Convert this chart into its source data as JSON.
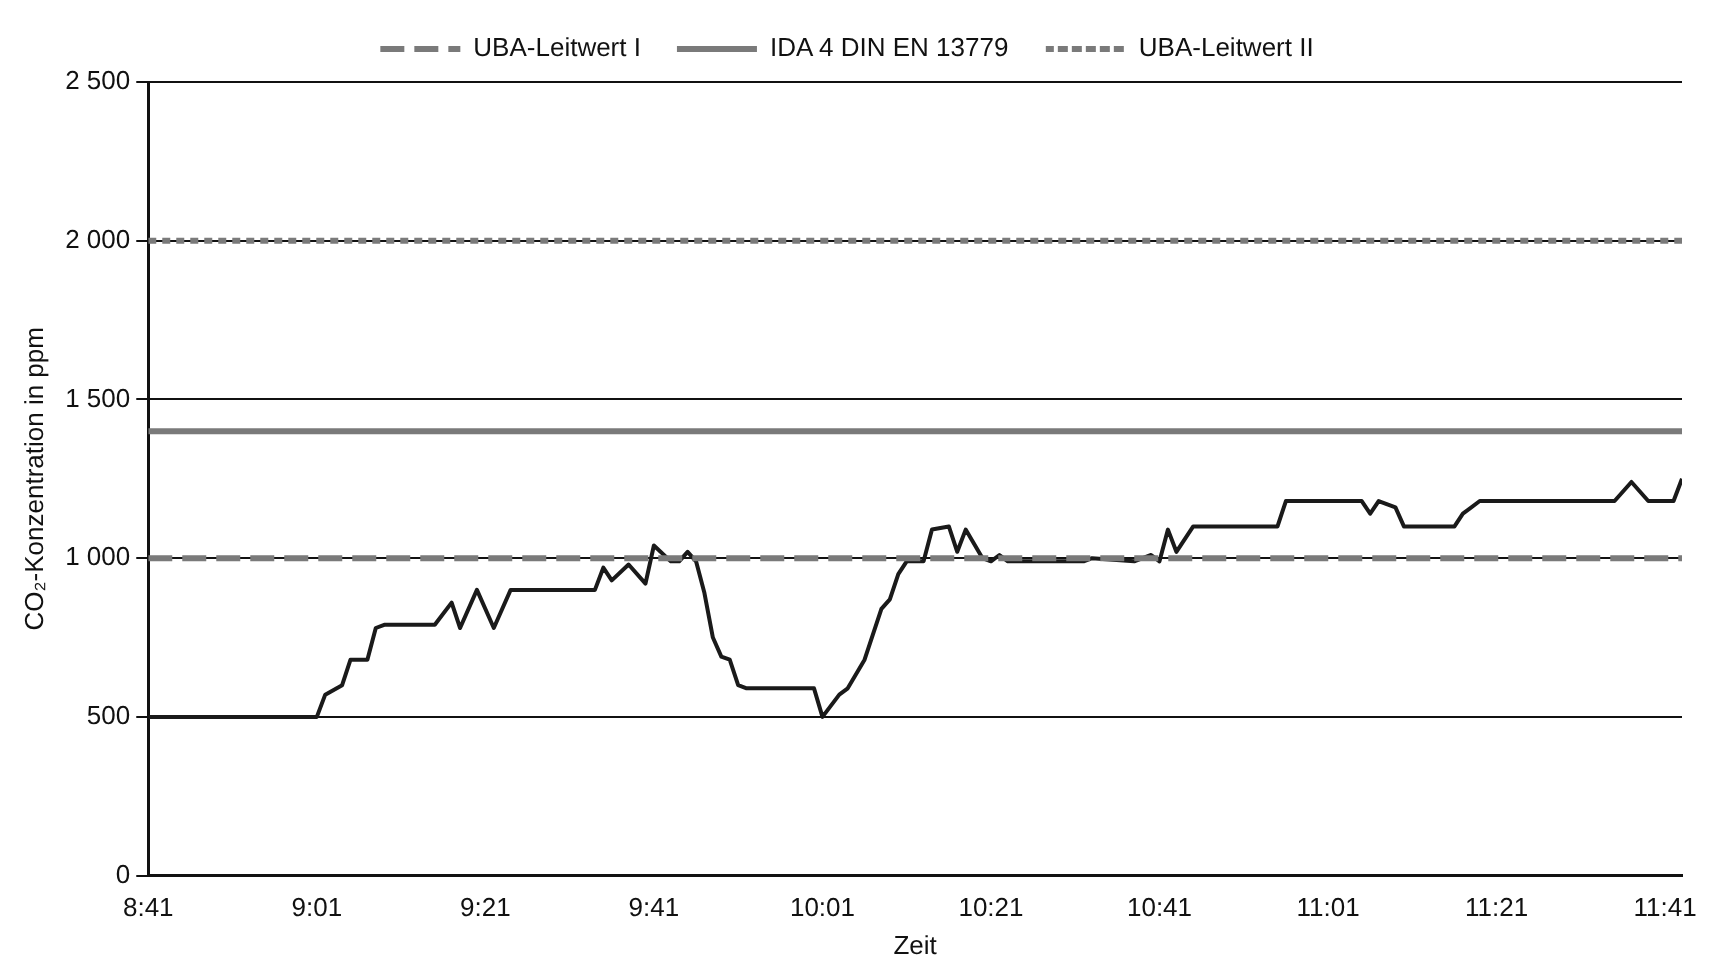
{
  "chart_data": {
    "type": "line",
    "xlabel": "Zeit",
    "ylabel": "CO₂-Konzentration in ppm",
    "xlim": [
      8.6833,
      11.7167
    ],
    "xticks": [
      {
        "value": 8.6833,
        "label": "8:41"
      },
      {
        "value": 9.0167,
        "label": "9:01"
      },
      {
        "value": 9.35,
        "label": "9:21"
      },
      {
        "value": 9.6833,
        "label": "9:41"
      },
      {
        "value": 10.0167,
        "label": "10:01"
      },
      {
        "value": 10.35,
        "label": "10:21"
      },
      {
        "value": 10.6833,
        "label": "10:41"
      },
      {
        "value": 11.0167,
        "label": "11:01"
      },
      {
        "value": 11.35,
        "label": "11:21"
      },
      {
        "value": 11.6833,
        "label": "11:41"
      }
    ],
    "ylim": [
      0,
      2500
    ],
    "yticks": [
      0,
      500,
      {
        "value": 1000,
        "label": "1 000"
      },
      {
        "value": 1500,
        "label": "1 500"
      },
      {
        "value": 2000,
        "label": "2 000"
      },
      {
        "value": 2500,
        "label": "2 500"
      }
    ],
    "grid": "y",
    "legend": "top",
    "marker": "none",
    "series": [
      {
        "name": "UBA-Leitwert I",
        "color": "#7a7a7a",
        "line_style": "dashed",
        "x": [
          8.6833,
          11.7167
        ],
        "values": [
          1000,
          1000
        ]
      },
      {
        "name": "IDA 4 DIN EN 13779",
        "color": "#7a7a7a",
        "line_style": "solid",
        "x": [
          8.6833,
          11.7167
        ],
        "values": [
          1400,
          1400
        ]
      },
      {
        "name": "UBA-Leitwert II",
        "color": "#7a7a7a",
        "line_style": "dotted",
        "x": [
          8.6833,
          11.7167
        ],
        "values": [
          2000,
          2000
        ]
      },
      {
        "color": "#1a1a1a",
        "line_style": "solid",
        "x": [
          8.6833,
          9.0167,
          9.0333,
          9.0667,
          9.0833,
          9.1167,
          9.1333,
          9.15,
          9.25,
          9.2833,
          9.3,
          9.3333,
          9.3667,
          9.4,
          9.5667,
          9.5833,
          9.6,
          9.6333,
          9.6667,
          9.6833,
          9.7167,
          9.7333,
          9.75,
          9.7667,
          9.7833,
          9.8,
          9.8167,
          9.8333,
          9.85,
          9.8667,
          10.0,
          10.0167,
          10.05,
          10.0667,
          10.1,
          10.1333,
          10.15,
          10.1667,
          10.1833,
          10.2167,
          10.2333,
          10.2667,
          10.2833,
          10.3,
          10.3333,
          10.35,
          10.3667,
          10.3833,
          10.5333,
          10.55,
          10.6333,
          10.6667,
          10.6833,
          10.7,
          10.7167,
          10.75,
          10.9167,
          10.9333,
          10.9667,
          11.0833,
          11.1,
          11.1167,
          11.15,
          11.1667,
          11.2667,
          11.2833,
          11.3167,
          11.35,
          11.5833,
          11.6167,
          11.65,
          11.7,
          11.7167
        ],
        "values": [
          500,
          500,
          570,
          600,
          680,
          680,
          780,
          790,
          790,
          860,
          780,
          900,
          780,
          900,
          900,
          970,
          930,
          980,
          920,
          1040,
          990,
          990,
          1020,
          990,
          890,
          750,
          690,
          680,
          600,
          590,
          590,
          500,
          570,
          590,
          680,
          840,
          870,
          950,
          990,
          990,
          1090,
          1100,
          1020,
          1090,
          1000,
          990,
          1010,
          990,
          990,
          1000,
          990,
          1010,
          990,
          1090,
          1020,
          1100,
          1100,
          1180,
          1180,
          1180,
          1140,
          1180,
          1160,
          1100,
          1100,
          1140,
          1180,
          1180,
          1180,
          1240,
          1180,
          1180,
          1250
        ]
      }
    ]
  }
}
